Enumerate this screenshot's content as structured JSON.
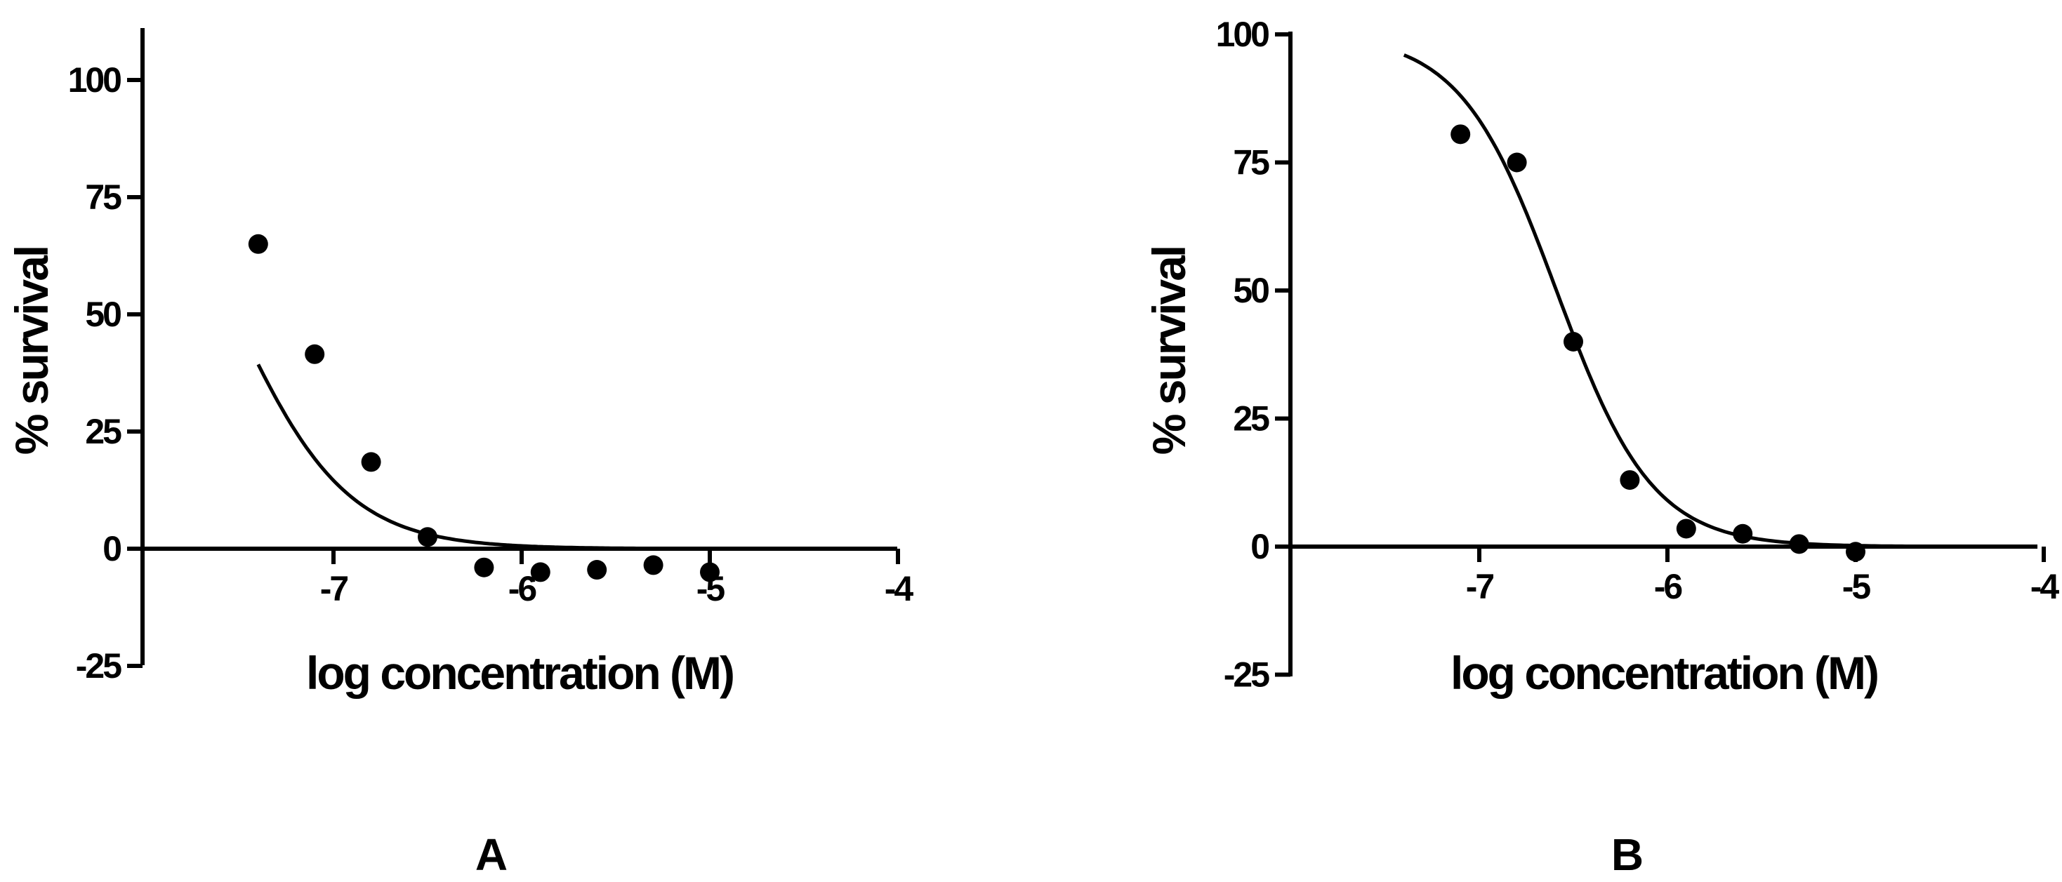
{
  "chart_data": [
    {
      "type": "scatter",
      "panel_label": "A",
      "xlabel": "log concentration (M)",
      "ylabel": "% survival",
      "xlim": [
        -8,
        -4
      ],
      "ylim": [
        -25,
        110
      ],
      "x_ticks": [
        -7,
        -6,
        -5,
        -4
      ],
      "x_tick_labels": [
        "-7",
        "-6",
        "-5",
        "-4"
      ],
      "y_ticks": [
        -25,
        0,
        25,
        50,
        75,
        100
      ],
      "y_tick_labels": [
        "-25",
        "0",
        "25",
        "50",
        "75",
        "100"
      ],
      "points": [
        {
          "x": -7.4,
          "y": 65
        },
        {
          "x": -7.1,
          "y": 41.5
        },
        {
          "x": -6.8,
          "y": 18.5
        },
        {
          "x": -6.5,
          "y": 2.5
        },
        {
          "x": -6.2,
          "y": -4
        },
        {
          "x": -5.9,
          "y": -5
        },
        {
          "x": -5.6,
          "y": -4.5
        },
        {
          "x": -5.3,
          "y": -3.5
        },
        {
          "x": -5.0,
          "y": -5
        }
      ],
      "fit": {
        "model": "sigmoid",
        "top": 100,
        "bottom": 0,
        "logEC50": -7.53,
        "hill": -1.45,
        "x_range": [
          -7.4,
          -5.0
        ]
      }
    },
    {
      "type": "scatter",
      "panel_label": "B",
      "xlabel": "log concentration (M)",
      "ylabel": "% survival",
      "xlim": [
        -8,
        -4
      ],
      "ylim": [
        -25,
        100
      ],
      "x_ticks": [
        -7,
        -6,
        -5,
        -4
      ],
      "x_tick_labels": [
        "-7",
        "-6",
        "-5",
        "-4"
      ],
      "y_ticks": [
        -25,
        0,
        25,
        50,
        75,
        100
      ],
      "y_tick_labels": [
        "-25",
        "0",
        "25",
        "50",
        "75",
        "100"
      ],
      "points": [
        {
          "x": -7.1,
          "y": 80.5
        },
        {
          "x": -6.8,
          "y": 75
        },
        {
          "x": -6.5,
          "y": 40
        },
        {
          "x": -6.2,
          "y": 13
        },
        {
          "x": -5.9,
          "y": 3.5
        },
        {
          "x": -5.6,
          "y": 2.5
        },
        {
          "x": -5.3,
          "y": 0.5
        },
        {
          "x": -5.0,
          "y": -1
        }
      ],
      "fit": {
        "model": "sigmoid",
        "top": 100,
        "bottom": 0,
        "logEC50": -6.59,
        "hill": -1.7,
        "x_range": [
          -7.4,
          -4.5
        ]
      }
    }
  ]
}
